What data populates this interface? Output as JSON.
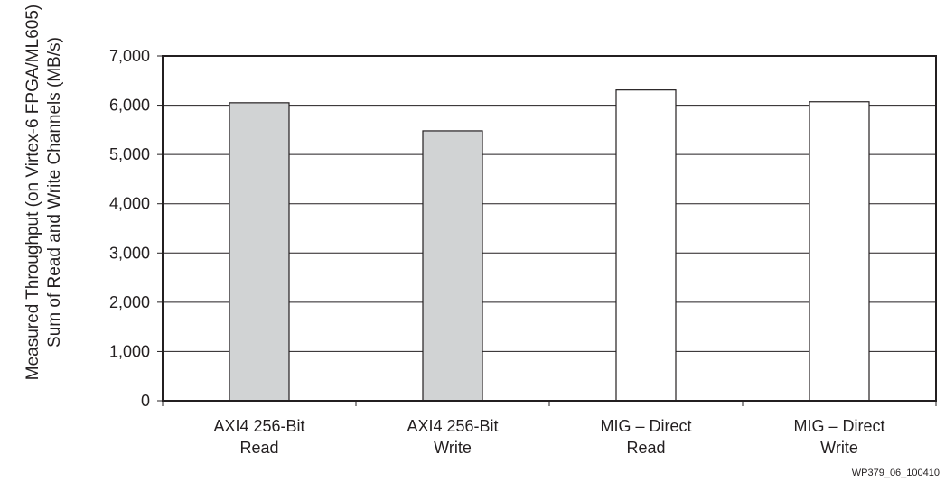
{
  "chart_data": {
    "type": "bar",
    "title": "",
    "xlabel": "",
    "ylabel_lines": [
      "Measured Throughput (on Virtex-6 FPGA/ML605)",
      "Sum of Read and Write Channels (MB/s)"
    ],
    "ylim": [
      0,
      7000
    ],
    "yticks": [
      0,
      1000,
      2000,
      3000,
      4000,
      5000,
      6000,
      7000
    ],
    "ytick_labels": [
      "0",
      "1,000",
      "2,000",
      "3,000",
      "4,000",
      "5,000",
      "6,000",
      "7,000"
    ],
    "categories": [
      [
        "AXI4 256-Bit",
        "Read"
      ],
      [
        "AXI4 256-Bit",
        "Write"
      ],
      [
        "MIG – Direct",
        "Read"
      ],
      [
        "MIG – Direct",
        "Write"
      ]
    ],
    "values": [
      6050,
      5480,
      6310,
      6070
    ],
    "bar_colors": [
      "#d1d3d4",
      "#d1d3d4",
      "#ffffff",
      "#ffffff"
    ],
    "grid": true,
    "legend": "none",
    "figure_id": "WP379_06_100410"
  }
}
